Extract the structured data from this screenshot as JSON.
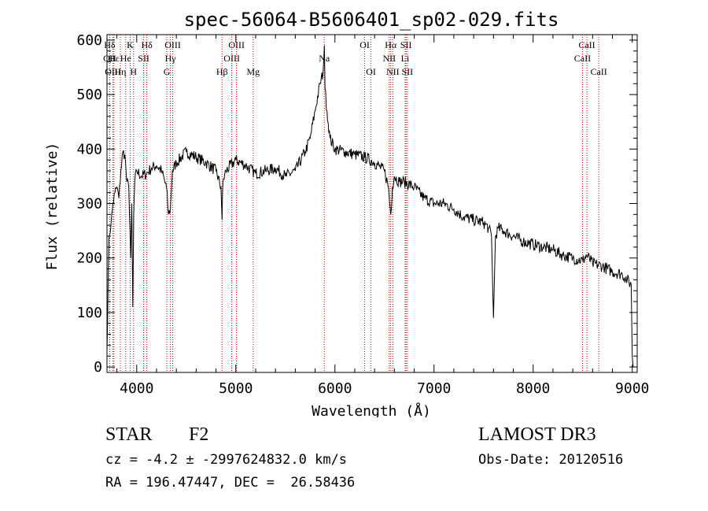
{
  "chart_data": {
    "type": "line",
    "title": "spec-56064-B5606401_sp02-029.fits",
    "xlabel": "Wavelength (Å)",
    "ylabel": "Flux (relative)",
    "xlim": [
      3700,
      9050
    ],
    "ylim": [
      -10,
      610
    ],
    "xticks": [
      4000,
      5000,
      6000,
      7000,
      8000,
      9000
    ],
    "yticks": [
      0,
      100,
      200,
      300,
      400,
      500,
      600
    ],
    "grid": false,
    "line_color": "#000000",
    "marker_color": "#cc0000",
    "series": [
      {
        "name": "flux",
        "x": [
          3700,
          3720,
          3740,
          3760,
          3780,
          3800,
          3820,
          3840,
          3860,
          3880,
          3900,
          3920,
          3940,
          3950,
          3960,
          3970,
          3980,
          4000,
          4050,
          4100,
          4150,
          4200,
          4250,
          4300,
          4320,
          4340,
          4360,
          4400,
          4500,
          4600,
          4700,
          4800,
          4850,
          4861,
          4870,
          4900,
          5000,
          5100,
          5200,
          5300,
          5400,
          5500,
          5600,
          5700,
          5750,
          5800,
          5850,
          5880,
          5893,
          5900,
          5920,
          5950,
          6000,
          6100,
          6200,
          6300,
          6400,
          6500,
          6540,
          6563,
          6580,
          6600,
          6650,
          6700,
          6800,
          6900,
          7000,
          7100,
          7200,
          7300,
          7400,
          7500,
          7550,
          7580,
          7600,
          7620,
          7650,
          7700,
          7800,
          7900,
          8000,
          8100,
          8200,
          8300,
          8400,
          8500,
          8540,
          8600,
          8700,
          8800,
          8900,
          8950,
          8990,
          9000,
          9010
        ],
        "y": [
          30,
          240,
          260,
          300,
          320,
          330,
          310,
          360,
          395,
          390,
          340,
          330,
          200,
          300,
          110,
          280,
          340,
          360,
          350,
          355,
          365,
          370,
          360,
          330,
          280,
          290,
          360,
          375,
          395,
          385,
          375,
          360,
          330,
          270,
          340,
          360,
          380,
          370,
          355,
          360,
          365,
          350,
          360,
          395,
          420,
          470,
          520,
          540,
          590,
          510,
          470,
          420,
          400,
          395,
          390,
          385,
          375,
          360,
          330,
          280,
          330,
          350,
          340,
          340,
          330,
          310,
          300,
          300,
          290,
          275,
          270,
          265,
          255,
          240,
          90,
          240,
          255,
          250,
          240,
          230,
          225,
          220,
          215,
          205,
          200,
          195,
          205,
          190,
          185,
          175,
          170,
          160,
          150,
          20,
          0
        ]
      }
    ],
    "lines": [
      {
        "label": "Hδ",
        "wl": 3727,
        "row": 0
      },
      {
        "label": "OII",
        "wl": 3727,
        "row": 1
      },
      {
        "label": "OIII",
        "wl": 3760,
        "row": 2
      },
      {
        "label": "Hε",
        "wl": 3770,
        "row": 1
      },
      {
        "label": "Hη",
        "wl": 3835,
        "row": 2
      },
      {
        "label": "K",
        "wl": 3934,
        "row": 0
      },
      {
        "label": "He",
        "wl": 3889,
        "row": 1
      },
      {
        "label": "SII",
        "wl": 4070,
        "row": 1
      },
      {
        "label": "H",
        "wl": 3968,
        "row": 2
      },
      {
        "label": "Hδ",
        "wl": 4102,
        "row": 0
      },
      {
        "label": "OIII",
        "wl": 4363,
        "row": 0
      },
      {
        "label": "Hγ",
        "wl": 4340,
        "row": 1
      },
      {
        "label": "G",
        "wl": 4304,
        "row": 2
      },
      {
        "label": "Hβ",
        "wl": 4861,
        "row": 2
      },
      {
        "label": "OIII",
        "wl": 5007,
        "row": 0
      },
      {
        "label": "OIII",
        "wl": 4959,
        "row": 1
      },
      {
        "label": "Mg",
        "wl": 5175,
        "row": 2
      },
      {
        "label": "Na",
        "wl": 5893,
        "row": 1
      },
      {
        "label": "OI",
        "wl": 6300,
        "row": 0
      },
      {
        "label": "OI",
        "wl": 6364,
        "row": 2
      },
      {
        "label": "Hα",
        "wl": 6563,
        "row": 0
      },
      {
        "label": "NII",
        "wl": 6548,
        "row": 1
      },
      {
        "label": "NII",
        "wl": 6584,
        "row": 2
      },
      {
        "label": "SII",
        "wl": 6717,
        "row": 0
      },
      {
        "label": "Li",
        "wl": 6708,
        "row": 1
      },
      {
        "label": "SII",
        "wl": 6731,
        "row": 2
      },
      {
        "label": "CaII",
        "wl": 8542,
        "row": 0
      },
      {
        "label": "CaII",
        "wl": 8498,
        "row": 1
      },
      {
        "label": "CaII",
        "wl": 8662,
        "row": 2
      }
    ]
  },
  "info": {
    "class": "STAR",
    "subclass": "F2",
    "survey": "LAMOST DR3",
    "cz": "cz = -4.2 ± -2997624832.0 km/s",
    "obs_date": "Obs-Date: 20120516",
    "radec": "RA = 196.47447, DEC =  26.58436"
  }
}
